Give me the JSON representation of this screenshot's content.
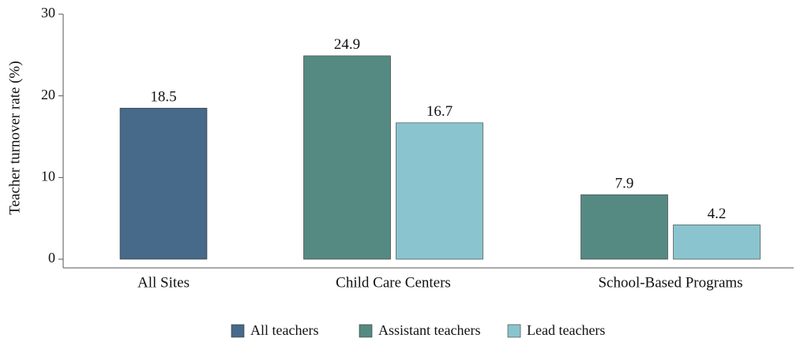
{
  "chart_data": {
    "type": "bar",
    "y_label": "Teacher turnover rate (%)",
    "categories": [
      "All Sites",
      "Child Care Centers",
      "School-Based Programs"
    ],
    "series": [
      {
        "name": "All teachers",
        "color": "#476a8a",
        "values": [
          18.5,
          null,
          null
        ]
      },
      {
        "name": "Assistant teachers",
        "color": "#558a83",
        "values": [
          null,
          24.9,
          7.9
        ]
      },
      {
        "name": "Lead teachers",
        "color": "#8ac5cf",
        "values": [
          null,
          16.7,
          4.2
        ]
      }
    ],
    "ylim": [
      0,
      30
    ],
    "yticks": [
      0,
      10,
      20,
      30
    ],
    "legend": "bottom"
  }
}
